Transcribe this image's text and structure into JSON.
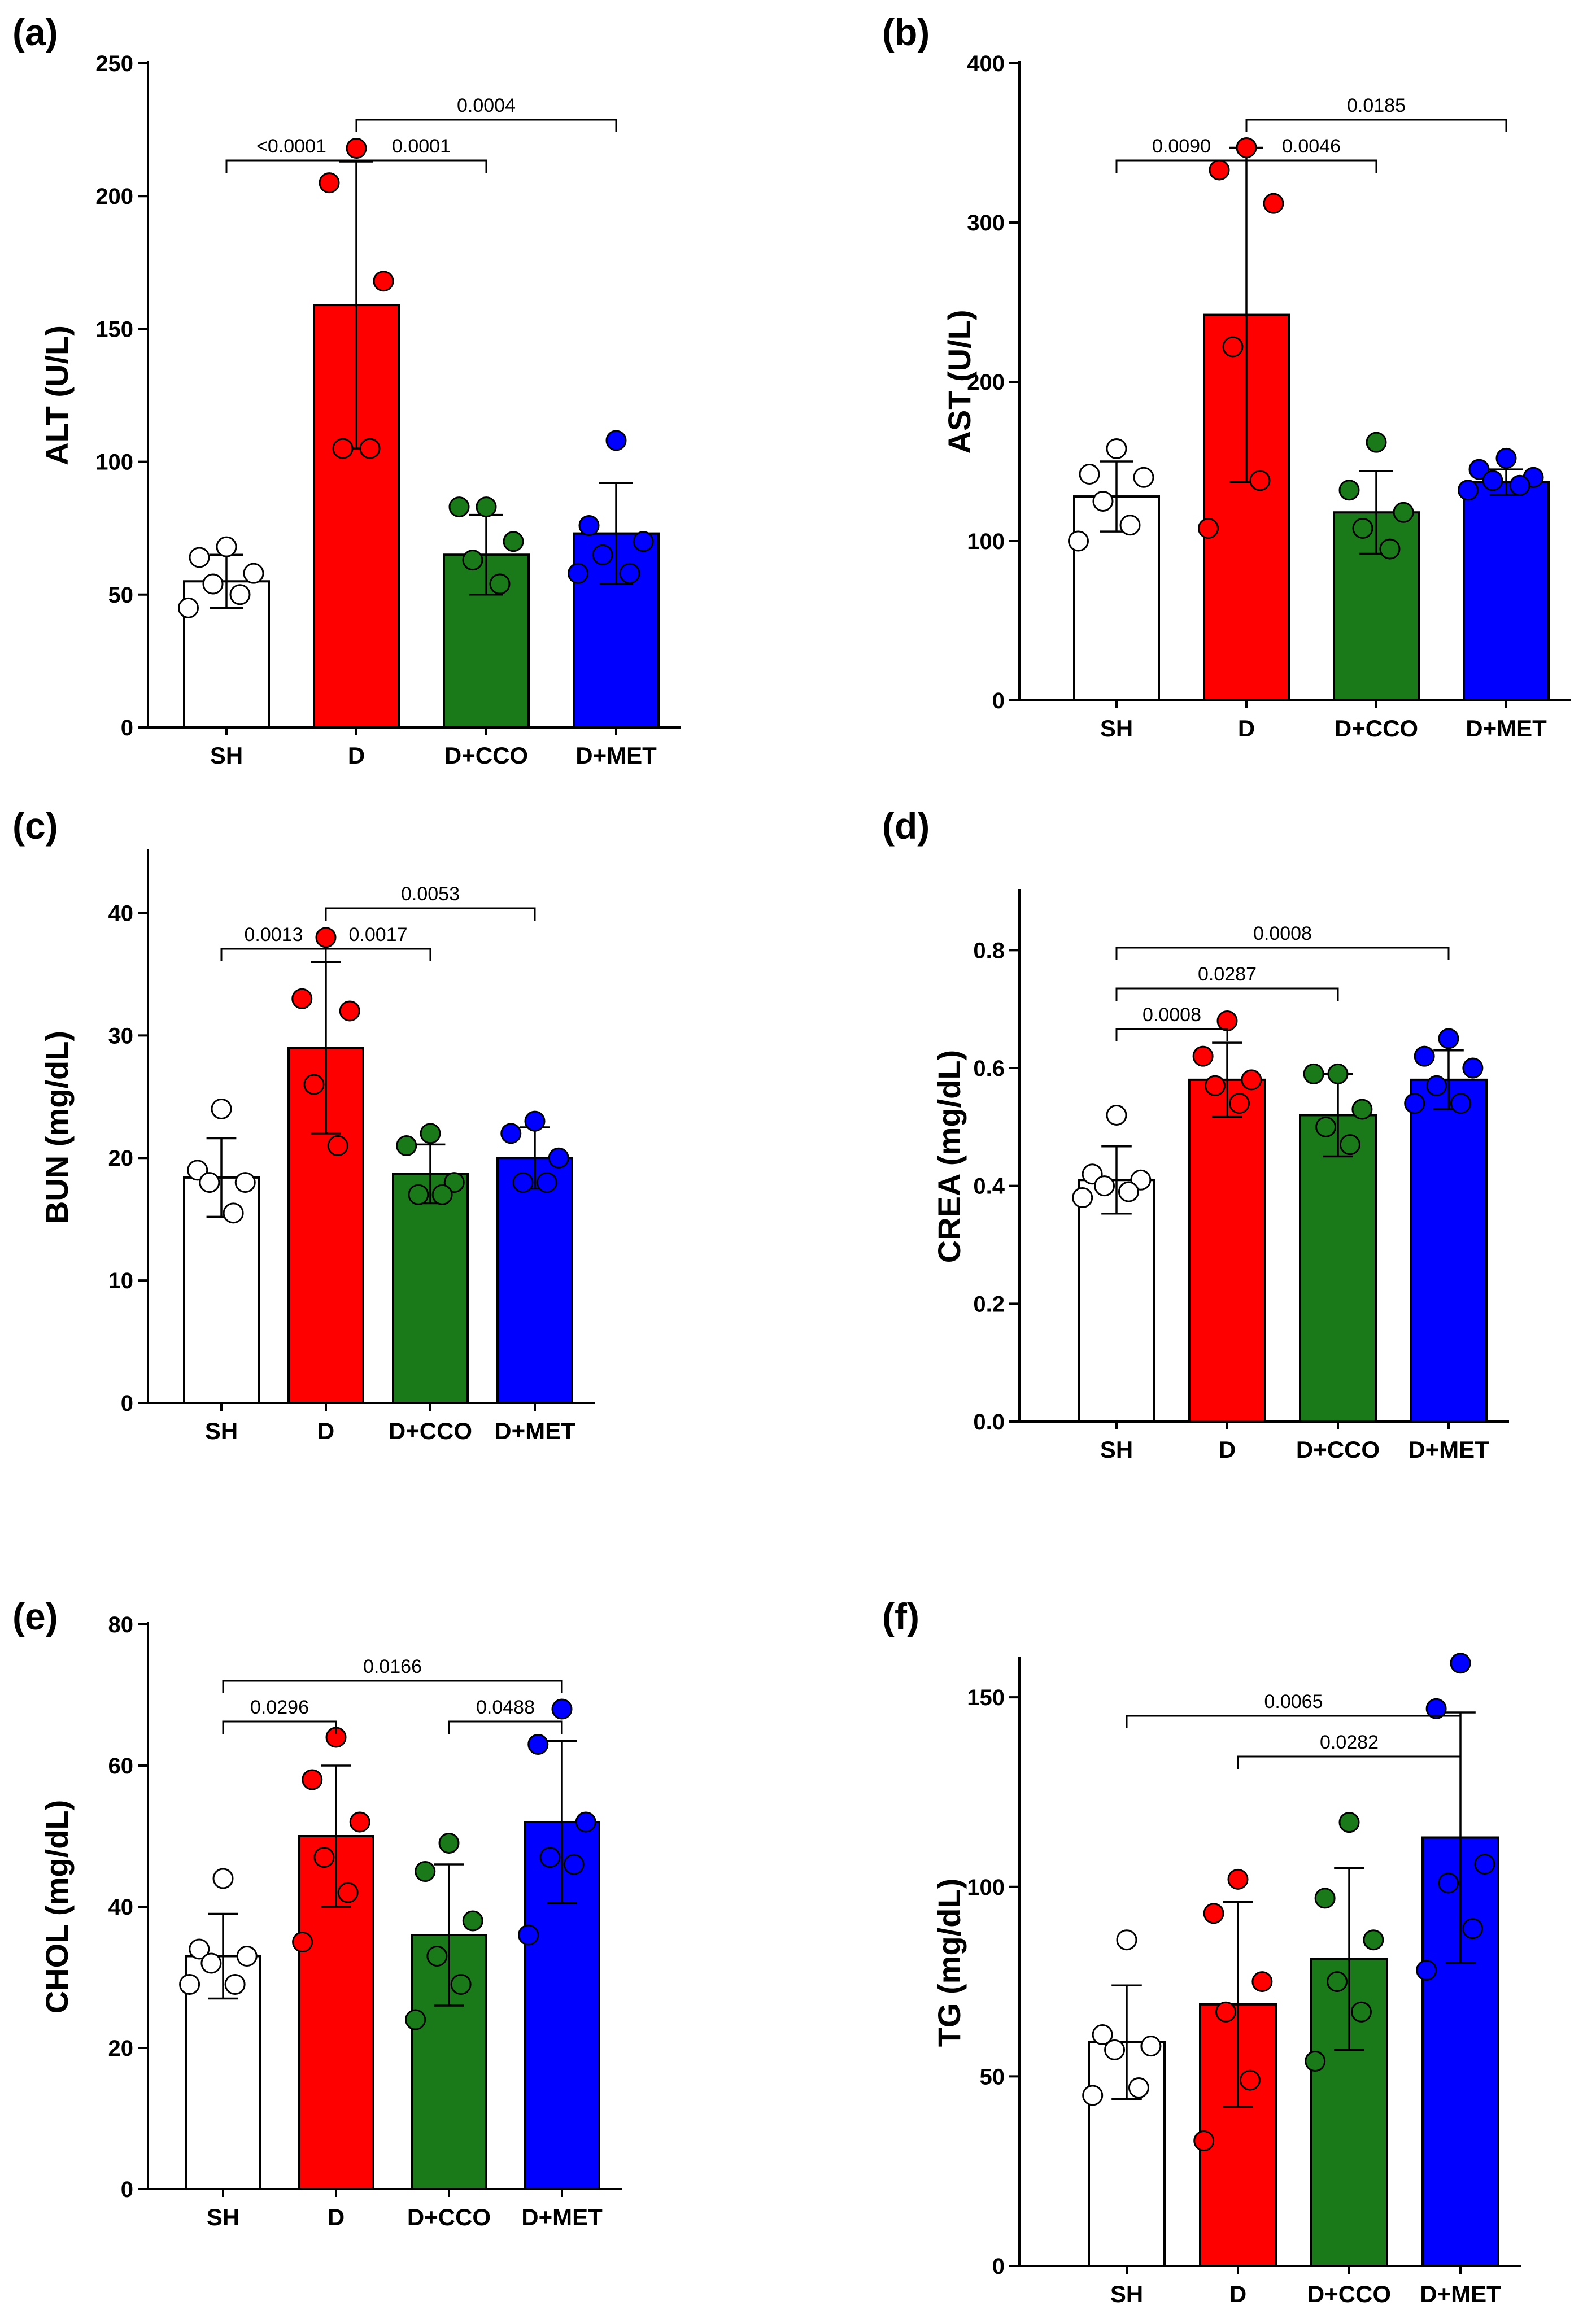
{
  "chart_data": [
    {
      "panel": "(a)",
      "type": "bar",
      "ylabel": "ALT (U/L)",
      "ylim": [
        0,
        250
      ],
      "yticks": [
        0,
        50,
        100,
        150,
        200,
        250
      ],
      "categories": [
        "SH",
        "D",
        "D+CCO",
        "D+MET"
      ],
      "colors": [
        "#ffffff",
        "#ff0000",
        "#1a7a1a",
        "#0000ff"
      ],
      "values": [
        55,
        159,
        65,
        73
      ],
      "sd": [
        10,
        54,
        15,
        19
      ],
      "points": [
        [
          68,
          64,
          58,
          54,
          50,
          45
        ],
        [
          218,
          205,
          168,
          105,
          105
        ],
        [
          83,
          83,
          70,
          63,
          54
        ],
        [
          108,
          76,
          70,
          65,
          58,
          58
        ]
      ],
      "comparisons": [
        {
          "from": 0,
          "to": 1,
          "label": "<0.0001",
          "level": 1
        },
        {
          "from": 1,
          "to": 2,
          "label": "0.0001",
          "level": 1
        },
        {
          "from": 1,
          "to": 3,
          "label": "0.0004",
          "level": 2
        }
      ]
    },
    {
      "panel": "(b)",
      "type": "bar",
      "ylabel": "AST (U/L)",
      "ylim": [
        0,
        400
      ],
      "yticks": [
        0,
        100,
        200,
        300,
        400
      ],
      "categories": [
        "SH",
        "D",
        "D+CCO",
        "D+MET"
      ],
      "colors": [
        "#ffffff",
        "#ff0000",
        "#1a7a1a",
        "#0000ff"
      ],
      "values": [
        128,
        242,
        118,
        137
      ],
      "sd": [
        22,
        105,
        26,
        8
      ],
      "points": [
        [
          158,
          142,
          140,
          125,
          110,
          100
        ],
        [
          347,
          333,
          312,
          222,
          138,
          108
        ],
        [
          162,
          132,
          118,
          108,
          95
        ],
        [
          152,
          145,
          140,
          138,
          135,
          132
        ]
      ],
      "comparisons": [
        {
          "from": 0,
          "to": 1,
          "label": "0.0090",
          "level": 1
        },
        {
          "from": 1,
          "to": 2,
          "label": "0.0046",
          "level": 1
        },
        {
          "from": 1,
          "to": 3,
          "label": "0.0185",
          "level": 2
        }
      ]
    },
    {
      "panel": "(c)",
      "type": "bar",
      "ylabel": "BUN (mg/dL)",
      "ylim": [
        0,
        45
      ],
      "yticks": [
        0,
        10,
        20,
        30,
        40
      ],
      "categories": [
        "SH",
        "D",
        "D+CCO",
        "D+MET"
      ],
      "colors": [
        "#ffffff",
        "#ff0000",
        "#1a7a1a",
        "#0000ff"
      ],
      "values": [
        18.4,
        29,
        18.7,
        20
      ],
      "sd": [
        3.2,
        7,
        2.4,
        2.5
      ],
      "points": [
        [
          24,
          19,
          18,
          18,
          15.5
        ],
        [
          38,
          33,
          32,
          26,
          21
        ],
        [
          22,
          21,
          18,
          17,
          17
        ],
        [
          23,
          22,
          20,
          18,
          18
        ]
      ],
      "comparisons": [
        {
          "from": 0,
          "to": 1,
          "label": "0.0013",
          "level": 1
        },
        {
          "from": 1,
          "to": 2,
          "label": "0.0017",
          "level": 1
        },
        {
          "from": 1,
          "to": 3,
          "label": "0.0053",
          "level": 2
        }
      ]
    },
    {
      "panel": "(d)",
      "type": "bar",
      "ylabel": "CREA (mg/dL)",
      "ylim": [
        0,
        0.9
      ],
      "yticks": [
        "0.0",
        "0.2",
        "0.4",
        "0.6",
        "0.8"
      ],
      "categories": [
        "SH",
        "D",
        "D+CCO",
        "D+MET"
      ],
      "colors": [
        "#ffffff",
        "#ff0000",
        "#1a7a1a",
        "#0000ff"
      ],
      "values": [
        0.41,
        0.58,
        0.52,
        0.58
      ],
      "sd": [
        0.057,
        0.063,
        0.07,
        0.05
      ],
      "points": [
        [
          0.52,
          0.42,
          0.41,
          0.4,
          0.39,
          0.38
        ],
        [
          0.68,
          0.62,
          0.58,
          0.57,
          0.54
        ],
        [
          0.59,
          0.59,
          0.53,
          0.5,
          0.47
        ],
        [
          0.65,
          0.62,
          0.6,
          0.57,
          0.54,
          0.54
        ]
      ],
      "comparisons": [
        {
          "from": 0,
          "to": 1,
          "label": "0.0008",
          "level": 1
        },
        {
          "from": 0,
          "to": 2,
          "label": "0.0287",
          "level": 2
        },
        {
          "from": 0,
          "to": 3,
          "label": "0.0008",
          "level": 3
        }
      ]
    },
    {
      "panel": "(e)",
      "type": "bar",
      "ylabel": "CHOL (mg/dL)",
      "ylim": [
        0,
        80
      ],
      "yticks": [
        0,
        20,
        40,
        60,
        80
      ],
      "categories": [
        "SH",
        "D",
        "D+CCO",
        "D+MET"
      ],
      "colors": [
        "#ffffff",
        "#ff0000",
        "#1a7a1a",
        "#0000ff"
      ],
      "values": [
        33,
        50,
        36,
        52
      ],
      "sd": [
        6,
        10,
        10,
        11.5
      ],
      "points": [
        [
          44,
          34,
          33,
          32,
          29,
          29
        ],
        [
          64,
          58,
          52,
          47,
          42,
          35
        ],
        [
          49,
          45,
          38,
          33,
          29,
          24
        ],
        [
          68,
          63,
          52,
          47,
          46,
          36
        ]
      ],
      "comparisons": [
        {
          "from": 0,
          "to": 1,
          "label": "0.0296",
          "level": 1
        },
        {
          "from": 2,
          "to": 3,
          "label": "0.0488",
          "level": 1
        },
        {
          "from": 0,
          "to": 3,
          "label": "0.0166",
          "level": 2
        }
      ]
    },
    {
      "panel": "(f)",
      "type": "bar",
      "ylabel": "TG (mg/dL)",
      "ylim": [
        0,
        160
      ],
      "yticks": [
        0,
        50,
        100,
        150
      ],
      "categories": [
        "SH",
        "D",
        "D+CCO",
        "D+MET"
      ],
      "colors": [
        "#ffffff",
        "#ff0000",
        "#1a7a1a",
        "#0000ff"
      ],
      "values": [
        59,
        69,
        81,
        113
      ],
      "sd": [
        15,
        27,
        24,
        33
      ],
      "points": [
        [
          86,
          61,
          58,
          57,
          47,
          45
        ],
        [
          102,
          93,
          75,
          67,
          49,
          33
        ],
        [
          117,
          97,
          86,
          75,
          67,
          54
        ],
        [
          159,
          147,
          106,
          101,
          89,
          78
        ]
      ],
      "comparisons": [
        {
          "from": 1,
          "to": 3,
          "label": "0.0282",
          "level": 1
        },
        {
          "from": 0,
          "to": 3,
          "label": "0.0065",
          "level": 2
        }
      ]
    }
  ]
}
